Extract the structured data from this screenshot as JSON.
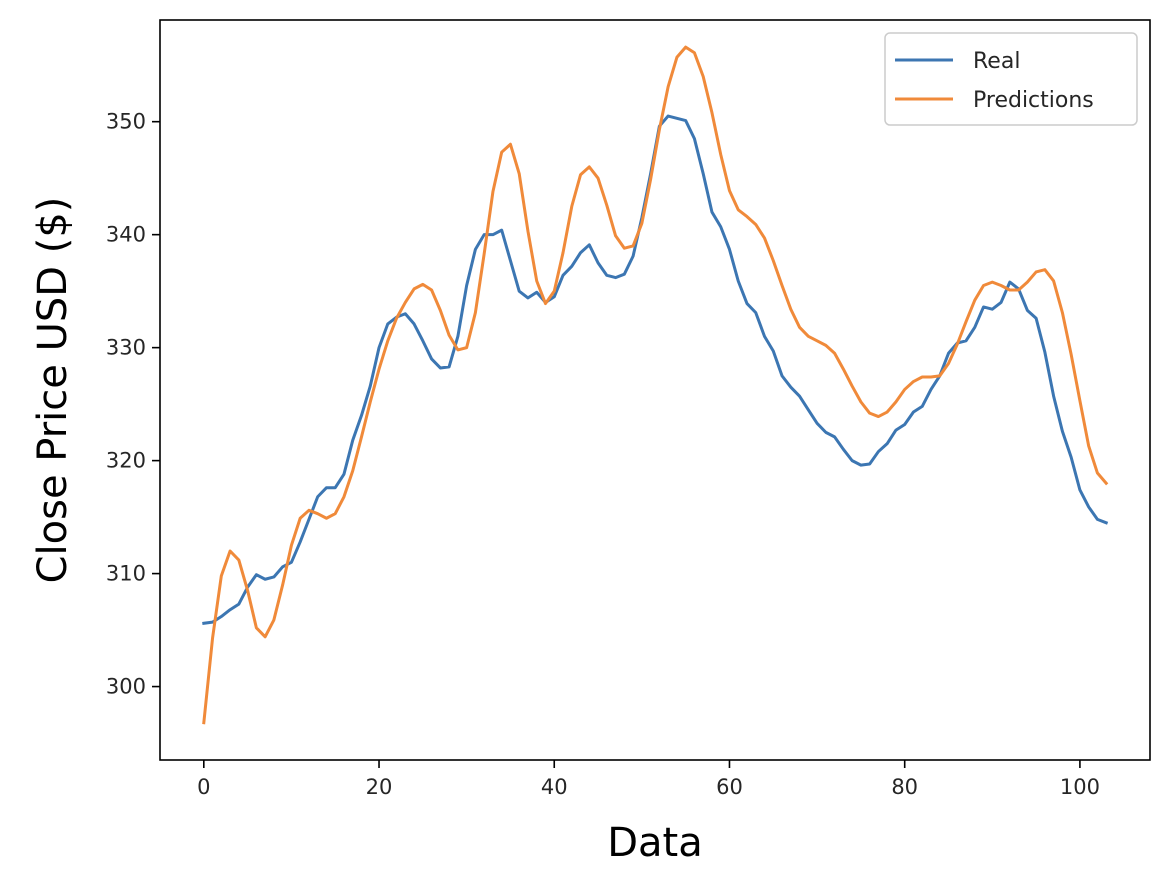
{
  "chart_data": {
    "type": "line",
    "xlabel": "Data",
    "ylabel": "Close Price USD ($)",
    "xlim": [
      -5,
      108
    ],
    "ylim": [
      293.5,
      359
    ],
    "xticks": [
      0,
      20,
      40,
      60,
      80,
      100
    ],
    "yticks": [
      300,
      310,
      320,
      330,
      340,
      350
    ],
    "grid": false,
    "legend_position": "top-right",
    "series": [
      {
        "name": "Real",
        "color": "#3c76b2",
        "values": [
          305.6,
          305.7,
          306.2,
          306.8,
          307.3,
          308.8,
          309.9,
          309.5,
          309.7,
          310.6,
          311.0,
          312.8,
          314.8,
          316.8,
          317.6,
          317.6,
          318.8,
          321.8,
          324.0,
          326.6,
          330.0,
          332.1,
          332.7,
          333.0,
          332.1,
          330.6,
          329.0,
          328.2,
          328.3,
          331.0,
          335.5,
          338.7,
          340.0,
          340.0,
          340.4,
          337.7,
          335.0,
          334.4,
          334.9,
          334.0,
          334.5,
          336.4,
          337.2,
          338.4,
          339.1,
          337.5,
          336.4,
          336.2,
          336.5,
          338.1,
          341.5,
          345.4,
          349.6,
          350.5,
          350.3,
          350.1,
          348.5,
          345.4,
          342.0,
          340.7,
          338.7,
          335.9,
          333.9,
          333.1,
          331.0,
          329.7,
          327.5,
          326.5,
          325.7,
          324.5,
          323.3,
          322.5,
          322.1,
          321.0,
          320.0,
          319.6,
          319.7,
          320.8,
          321.5,
          322.7,
          323.2,
          324.3,
          324.8,
          326.3,
          327.5,
          329.5,
          330.4,
          330.6,
          331.8,
          333.6,
          333.4,
          334.0,
          335.8,
          335.2,
          333.3,
          332.6,
          329.6,
          325.7,
          322.6,
          320.3,
          317.4,
          315.9,
          314.8,
          314.5
        ]
      },
      {
        "name": "Predictions",
        "color": "#f08a3a",
        "values": [
          296.8,
          304.3,
          309.8,
          312.0,
          311.2,
          308.5,
          305.2,
          304.4,
          305.9,
          309.0,
          312.5,
          314.9,
          315.6,
          315.3,
          314.9,
          315.3,
          316.8,
          319.1,
          322.1,
          325.2,
          328.1,
          330.6,
          332.6,
          334.0,
          335.2,
          335.6,
          335.1,
          333.3,
          331.1,
          329.8,
          330.0,
          333.1,
          338.3,
          343.8,
          347.3,
          348.0,
          345.4,
          340.3,
          335.9,
          333.9,
          335.0,
          338.4,
          342.5,
          345.3,
          346.0,
          345.0,
          342.6,
          339.9,
          338.8,
          339.0,
          341.0,
          344.9,
          349.3,
          353.1,
          355.7,
          356.6,
          356.1,
          354.0,
          350.8,
          347.1,
          343.9,
          342.2,
          341.6,
          340.9,
          339.7,
          337.7,
          335.5,
          333.4,
          331.8,
          331.0,
          330.6,
          330.2,
          329.5,
          328.1,
          326.6,
          325.2,
          324.2,
          323.9,
          324.3,
          325.2,
          326.3,
          327.0,
          327.4,
          327.4,
          327.5,
          328.6,
          330.3,
          332.3,
          334.2,
          335.5,
          335.8,
          335.5,
          335.1,
          335.1,
          335.8,
          336.7,
          336.9,
          335.9,
          333.1,
          329.4,
          325.3,
          321.3,
          318.9,
          318.0
        ]
      }
    ]
  }
}
